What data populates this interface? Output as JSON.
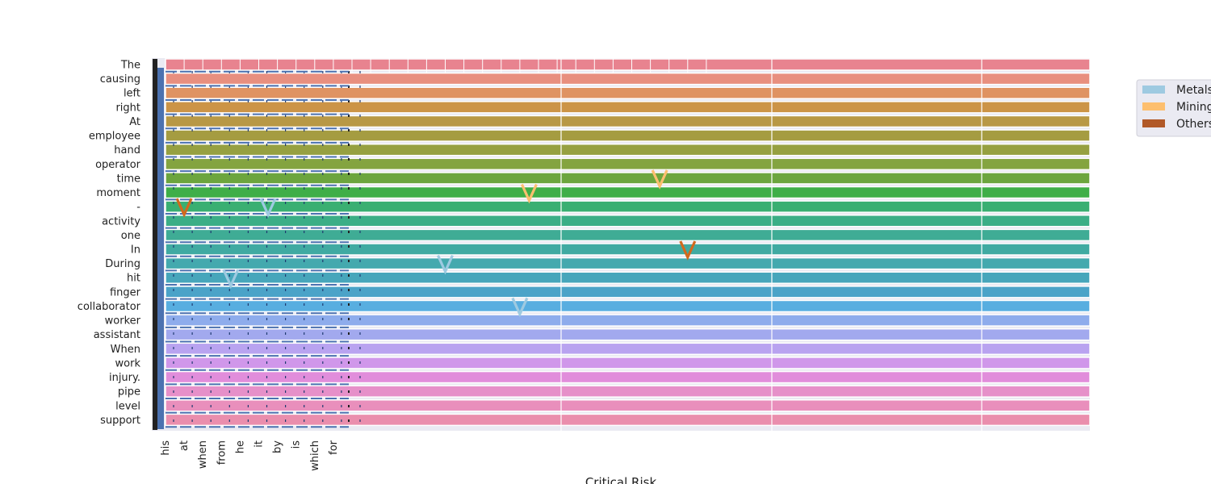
{
  "chart_data": {
    "type": "bar",
    "orientation": "horizontal",
    "xlabel": "Critical Risk",
    "ylabel": "",
    "title": "",
    "grid": true,
    "legend_placement": "upper right, outside plot",
    "y_categories": [
      "The",
      "causing",
      "left",
      "right",
      "At",
      "employee",
      "hand",
      "operator",
      "time",
      "moment",
      "-",
      "activity",
      "one",
      "In",
      "During",
      "hit",
      "finger",
      "collaborator",
      "worker",
      "assistant",
      "When",
      "work",
      "injury.",
      "pipe",
      "level",
      "support"
    ],
    "x_tick_labels": [
      "his",
      "at",
      "when",
      "from",
      "he",
      "it",
      "by",
      "is",
      "which",
      "for"
    ],
    "bar_colors": [
      "#e8838f",
      "#e88f7f",
      "#df9362",
      "#cc9447",
      "#b89845",
      "#a59c41",
      "#96a041",
      "#84a440",
      "#6ca53e",
      "#3fae48",
      "#3aaf72",
      "#3bae86",
      "#3fac95",
      "#40aaa2",
      "#44a9ae",
      "#47a6bb",
      "#4ba3c8",
      "#58aee0",
      "#8eacec",
      "#a2a9ee",
      "#b9a3f0",
      "#d097ea",
      "#e18ddb",
      "#e690c9",
      "#e98fbc",
      "#ea8ead"
    ],
    "legend": [
      {
        "label": "Metals",
        "color": "#9ecae1"
      },
      {
        "label": "Mining",
        "color": "#fdbf6f"
      },
      {
        "label": "Others",
        "color": "#b15928"
      }
    ],
    "markers": [
      {
        "series": "Others",
        "symbol": "v",
        "color": "#d2691e",
        "category": "-",
        "x_index": 1
      },
      {
        "series": "Metals",
        "symbol": "v",
        "color": "#9ecae1",
        "category": "-",
        "x_index": 5.5
      },
      {
        "series": "Metals",
        "symbol": "v",
        "color": "#9ecae1",
        "category": "hit",
        "x_index": 3.5
      },
      {
        "series": "Mining",
        "symbol": "v",
        "color": "#fdbf6f",
        "category": "moment",
        "x_index": 19.5
      },
      {
        "series": "Mining",
        "symbol": "v",
        "color": "#fdbf6f",
        "category": "time",
        "x_index": 26.5
      },
      {
        "series": "Metals",
        "symbol": "v",
        "color": "#9ecae1",
        "category": "During",
        "x_index": 15
      },
      {
        "series": "Metals",
        "symbol": "v",
        "color": "#9ecae1",
        "category": "collaborator",
        "x_index": 19
      },
      {
        "series": "Others",
        "symbol": "v",
        "color": "#d2691e",
        "category": "In",
        "x_index": 28
      }
    ]
  }
}
